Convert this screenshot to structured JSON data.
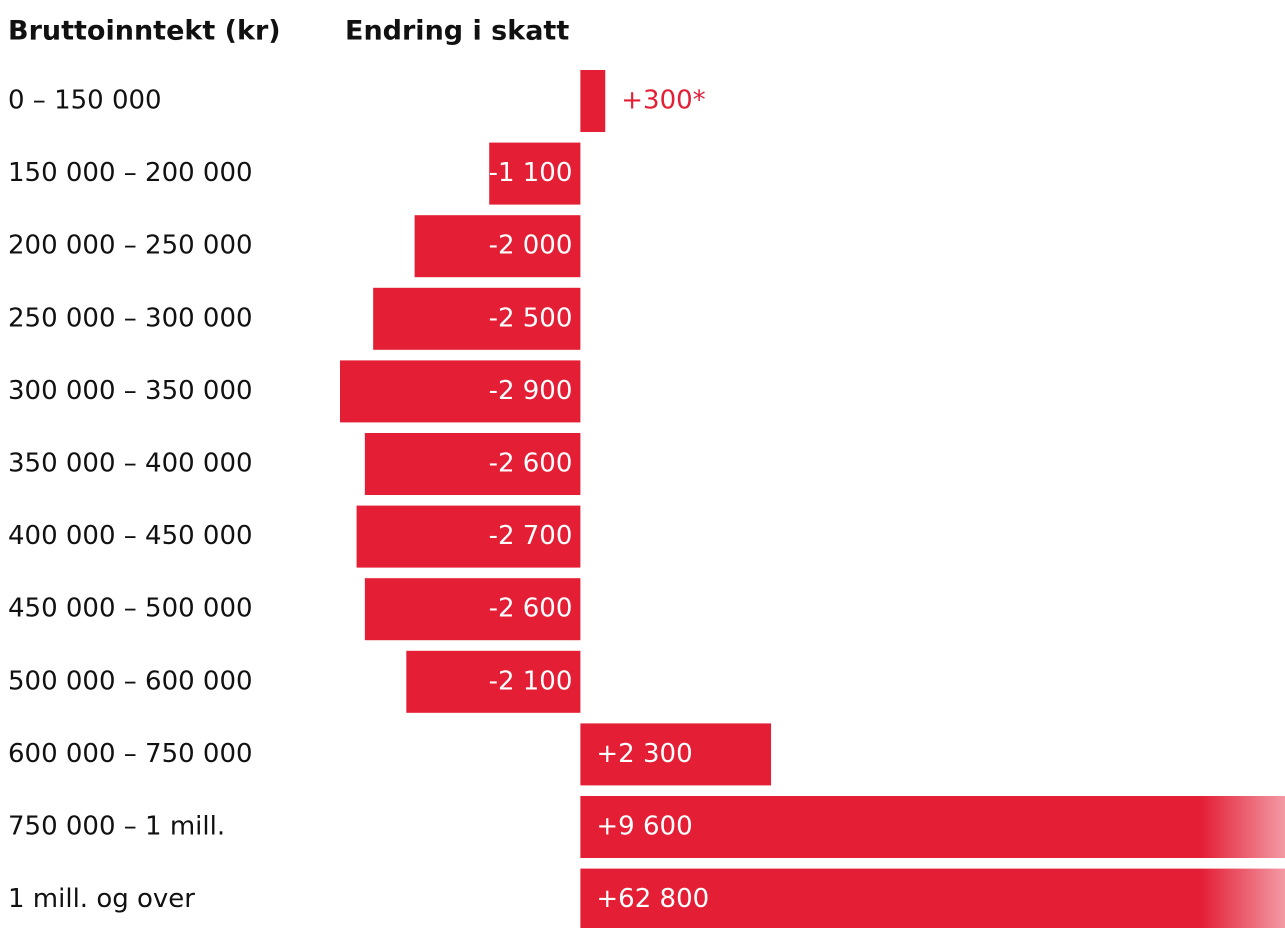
{
  "chart_data": {
    "type": "diverging-bar",
    "category_header": "Bruttoinntekt (kr)",
    "value_header": "Endring i skatt",
    "categories": [
      "0 – 150 000",
      "150 000 – 200 000",
      "200 000 – 250 000",
      "250 000 – 300 000",
      "300 000 – 350 000",
      "350 000 – 400 000",
      "400 000 – 450 000",
      "450 000 – 500 000",
      "500 000 – 600 000",
      "600 000 – 750 000",
      "750 000 – 1 mill.",
      "1 mill. og over"
    ],
    "values": [
      300,
      -1100,
      -2000,
      -2500,
      -2900,
      -2600,
      -2700,
      -2600,
      -2100,
      2300,
      9600,
      62800
    ],
    "value_labels": [
      "+300*",
      "-1 100",
      "-2 000",
      "-2 500",
      "-2 900",
      "-2 600",
      "-2 700",
      "-2 600",
      "-2 100",
      "+2 300",
      "+9 600",
      "+62 800"
    ],
    "color": "#e31e35",
    "xlim": [
      -2900,
      8500
    ]
  }
}
